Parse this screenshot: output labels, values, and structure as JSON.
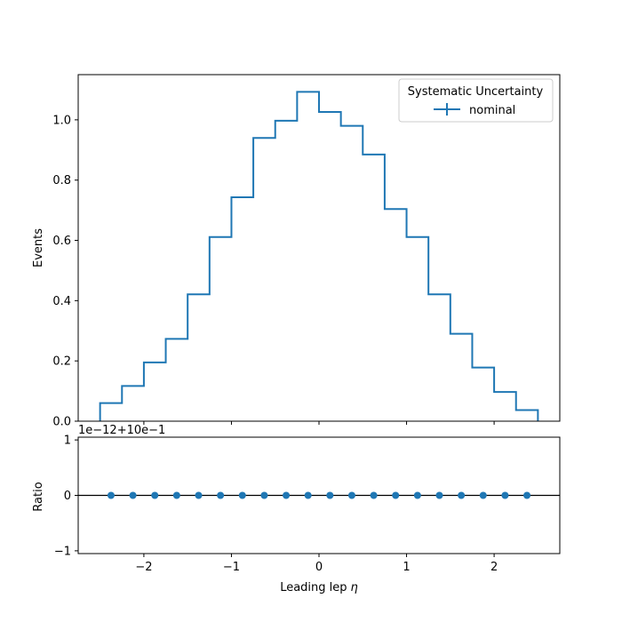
{
  "chart_data": [
    {
      "type": "step",
      "ylabel": "Events",
      "xlim": [
        -2.75,
        2.75
      ],
      "ylim": [
        0,
        1.15
      ],
      "bin_edges": [
        -2.5,
        -2.25,
        -2.0,
        -1.75,
        -1.5,
        -1.25,
        -1.0,
        -0.75,
        -0.5,
        -0.25,
        0.0,
        0.25,
        0.5,
        0.75,
        1.0,
        1.25,
        1.5,
        1.75,
        2.0,
        2.25,
        2.5
      ],
      "series": [
        {
          "name": "nominal",
          "color": "#1f77b4",
          "values": [
            0.06,
            0.117,
            0.195,
            0.273,
            0.421,
            0.611,
            0.743,
            0.94,
            0.997,
            1.093,
            1.026,
            0.98,
            0.885,
            0.704,
            0.611,
            0.421,
            0.29,
            0.178,
            0.097,
            0.037
          ]
        }
      ],
      "yticks": [
        "0.0",
        "0.2",
        "0.4",
        "0.6",
        "0.8",
        "1.0"
      ],
      "ytick_values": [
        0.0,
        0.2,
        0.4,
        0.6,
        0.8,
        1.0
      ],
      "legend": {
        "title": "Systematic Uncertainty",
        "entries": [
          "nominal"
        ],
        "placement": "top-right"
      }
    },
    {
      "type": "scatter",
      "xlabel": "Leading lep",
      "xlabel_symbol": "η",
      "ylabel": "Ratio",
      "offset_text": "1e−12+10e−1",
      "xlim": [
        -2.75,
        2.75
      ],
      "ylim": [
        -1.05,
        1.05
      ],
      "reference_line": 0,
      "x": [
        -2.375,
        -2.125,
        -1.875,
        -1.625,
        -1.375,
        -1.125,
        -0.875,
        -0.625,
        -0.375,
        -0.125,
        0.125,
        0.375,
        0.625,
        0.875,
        1.125,
        1.375,
        1.625,
        1.875,
        2.125,
        2.375
      ],
      "y": [
        0,
        0,
        0,
        0,
        0,
        0,
        0,
        0,
        0,
        0,
        0,
        0,
        0,
        0,
        0,
        0,
        0,
        0,
        0,
        0
      ],
      "yticks": [
        "−1",
        "0",
        "1"
      ],
      "ytick_values": [
        -1,
        0,
        1
      ],
      "xticks": [
        "−2",
        "−1",
        "0",
        "1",
        "2"
      ],
      "xtick_values": [
        -2,
        -1,
        0,
        1,
        2
      ]
    }
  ]
}
